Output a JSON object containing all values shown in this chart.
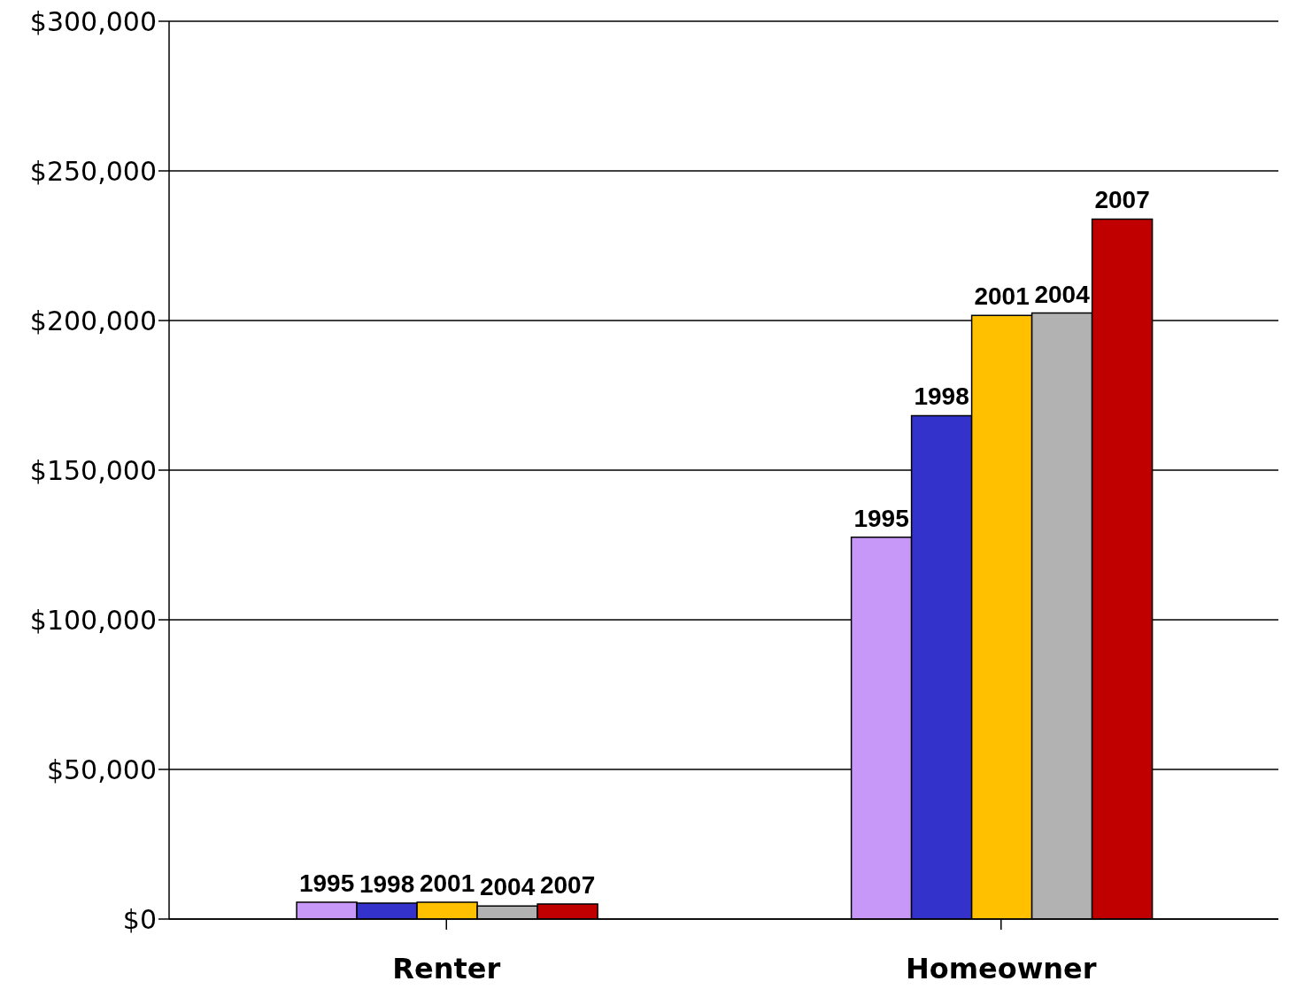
{
  "chart_data": {
    "type": "bar",
    "categories": [
      "Renter",
      "Homeowner"
    ],
    "series": [
      {
        "name": "1995",
        "color": "#c898f8",
        "values": [
          5600,
          127600
        ]
      },
      {
        "name": "1998",
        "color": "#3333cc",
        "values": [
          5300,
          168200
        ]
      },
      {
        "name": "2001",
        "color": "#ffc000",
        "values": [
          5600,
          201700
        ]
      },
      {
        "name": "2004",
        "color": "#b2b2b2",
        "values": [
          4400,
          202500
        ]
      },
      {
        "name": "2007",
        "color": "#c00000",
        "values": [
          5000,
          233900
        ]
      }
    ],
    "ylim": [
      0,
      300000
    ],
    "yticks": [
      {
        "value": 0,
        "label": "$0"
      },
      {
        "value": 50000,
        "label": "$50,000"
      },
      {
        "value": 100000,
        "label": "$100,000"
      },
      {
        "value": 150000,
        "label": "$150,000"
      },
      {
        "value": 200000,
        "label": "$200,000"
      },
      {
        "value": 250000,
        "label": "$250,000"
      },
      {
        "value": 300000,
        "label": "$300,000"
      }
    ],
    "grid": "y",
    "legend": false
  }
}
